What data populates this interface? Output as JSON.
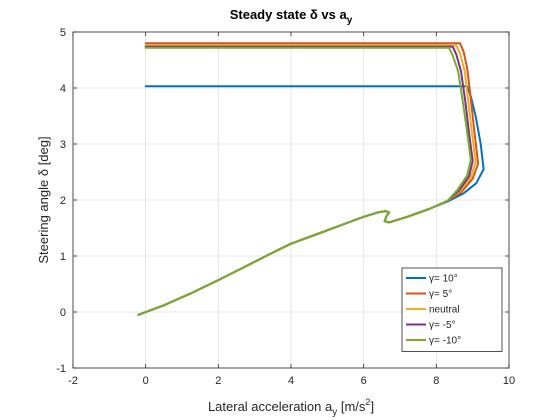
{
  "chart_data": {
    "type": "line",
    "title": "Steady state δ vs a",
    "title_subscript": "y",
    "xlabel": "Lateral acceleration a",
    "xlabel_subscript": "y",
    "xlabel_units": " [m/s",
    "xlabel_units_superscript": "2",
    "xlabel_units_close": "]",
    "ylabel": "Steering angle δ [deg]",
    "xlim": [
      -2,
      10
    ],
    "ylim": [
      -1,
      5
    ],
    "xticks": [
      "-2",
      "0",
      "2",
      "4",
      "6",
      "8",
      "10"
    ],
    "yticks": [
      "-1",
      "0",
      "1",
      "2",
      "3",
      "4",
      "5"
    ],
    "grid": true,
    "legend_position": "bottom-right",
    "series": [
      {
        "name": "γ= 10°",
        "color": "#0072BD",
        "points": [
          [
            -0.2,
            -0.05
          ],
          [
            0.5,
            0.12
          ],
          [
            1.2,
            0.32
          ],
          [
            2,
            0.57
          ],
          [
            2.8,
            0.83
          ],
          [
            3.5,
            1.06
          ],
          [
            4,
            1.22
          ],
          [
            4.8,
            1.41
          ],
          [
            5.5,
            1.58
          ],
          [
            6,
            1.7
          ],
          [
            6.4,
            1.78
          ],
          [
            6.6,
            1.8
          ],
          [
            6.7,
            1.78
          ],
          [
            6.62,
            1.7
          ],
          [
            6.58,
            1.62
          ],
          [
            6.7,
            1.6
          ],
          [
            7.2,
            1.7
          ],
          [
            7.8,
            1.84
          ],
          [
            8.3,
            1.97
          ],
          [
            8.75,
            2.12
          ],
          [
            9.1,
            2.3
          ],
          [
            9.3,
            2.55
          ],
          [
            9.22,
            3.0
          ],
          [
            9.08,
            3.5
          ],
          [
            8.95,
            3.85
          ],
          [
            8.85,
            4.03
          ],
          [
            7.5,
            4.03
          ],
          [
            5,
            4.03
          ],
          [
            2.5,
            4.03
          ],
          [
            0,
            4.03
          ]
        ]
      },
      {
        "name": "γ= 5°",
        "color": "#D95319",
        "points": [
          [
            -0.2,
            -0.05
          ],
          [
            0.5,
            0.12
          ],
          [
            1.2,
            0.32
          ],
          [
            2,
            0.57
          ],
          [
            2.8,
            0.83
          ],
          [
            3.5,
            1.06
          ],
          [
            4,
            1.22
          ],
          [
            4.8,
            1.41
          ],
          [
            5.5,
            1.58
          ],
          [
            6,
            1.7
          ],
          [
            6.4,
            1.78
          ],
          [
            6.6,
            1.8
          ],
          [
            6.7,
            1.78
          ],
          [
            6.62,
            1.7
          ],
          [
            6.58,
            1.62
          ],
          [
            6.7,
            1.6
          ],
          [
            7.2,
            1.7
          ],
          [
            7.8,
            1.84
          ],
          [
            8.3,
            1.98
          ],
          [
            8.7,
            2.15
          ],
          [
            9.0,
            2.38
          ],
          [
            9.15,
            2.65
          ],
          [
            9.05,
            3.2
          ],
          [
            8.95,
            3.8
          ],
          [
            8.85,
            4.35
          ],
          [
            8.75,
            4.65
          ],
          [
            8.65,
            4.8
          ],
          [
            6,
            4.8
          ],
          [
            3,
            4.8
          ],
          [
            0,
            4.8
          ]
        ]
      },
      {
        "name": "neutral",
        "color": "#EDB120",
        "points": [
          [
            -0.2,
            -0.05
          ],
          [
            0.5,
            0.12
          ],
          [
            1.2,
            0.32
          ],
          [
            2,
            0.57
          ],
          [
            2.8,
            0.83
          ],
          [
            3.5,
            1.06
          ],
          [
            4,
            1.22
          ],
          [
            4.8,
            1.41
          ],
          [
            5.5,
            1.58
          ],
          [
            6,
            1.7
          ],
          [
            6.4,
            1.78
          ],
          [
            6.6,
            1.8
          ],
          [
            6.7,
            1.78
          ],
          [
            6.62,
            1.7
          ],
          [
            6.58,
            1.62
          ],
          [
            6.7,
            1.6
          ],
          [
            7.2,
            1.7
          ],
          [
            7.8,
            1.84
          ],
          [
            8.3,
            1.98
          ],
          [
            8.65,
            2.16
          ],
          [
            8.95,
            2.4
          ],
          [
            9.08,
            2.68
          ],
          [
            8.98,
            3.2
          ],
          [
            8.88,
            3.75
          ],
          [
            8.78,
            4.3
          ],
          [
            8.65,
            4.62
          ],
          [
            8.55,
            4.76
          ],
          [
            6,
            4.76
          ],
          [
            3,
            4.76
          ],
          [
            0,
            4.76
          ]
        ]
      },
      {
        "name": "γ= -5°",
        "color": "#7E2F8E",
        "points": [
          [
            -0.2,
            -0.05
          ],
          [
            0.5,
            0.12
          ],
          [
            1.2,
            0.32
          ],
          [
            2,
            0.57
          ],
          [
            2.8,
            0.83
          ],
          [
            3.5,
            1.06
          ],
          [
            4,
            1.22
          ],
          [
            4.8,
            1.41
          ],
          [
            5.5,
            1.58
          ],
          [
            6,
            1.7
          ],
          [
            6.4,
            1.78
          ],
          [
            6.6,
            1.8
          ],
          [
            6.7,
            1.78
          ],
          [
            6.62,
            1.7
          ],
          [
            6.58,
            1.62
          ],
          [
            6.7,
            1.6
          ],
          [
            7.2,
            1.7
          ],
          [
            7.8,
            1.84
          ],
          [
            8.3,
            1.98
          ],
          [
            8.62,
            2.17
          ],
          [
            8.9,
            2.42
          ],
          [
            9.0,
            2.7
          ],
          [
            8.9,
            3.2
          ],
          [
            8.8,
            3.75
          ],
          [
            8.68,
            4.3
          ],
          [
            8.55,
            4.6
          ],
          [
            8.45,
            4.74
          ],
          [
            6,
            4.74
          ],
          [
            3,
            4.74
          ],
          [
            0,
            4.74
          ]
        ]
      },
      {
        "name": "γ= -10°",
        "color": "#77AC30",
        "points": [
          [
            -0.2,
            -0.05
          ],
          [
            0.5,
            0.12
          ],
          [
            1.2,
            0.32
          ],
          [
            2,
            0.57
          ],
          [
            2.8,
            0.83
          ],
          [
            3.5,
            1.06
          ],
          [
            4,
            1.22
          ],
          [
            4.8,
            1.41
          ],
          [
            5.5,
            1.58
          ],
          [
            6,
            1.7
          ],
          [
            6.4,
            1.78
          ],
          [
            6.6,
            1.8
          ],
          [
            6.7,
            1.78
          ],
          [
            6.62,
            1.7
          ],
          [
            6.58,
            1.62
          ],
          [
            6.7,
            1.6
          ],
          [
            7.2,
            1.7
          ],
          [
            7.8,
            1.84
          ],
          [
            8.3,
            1.98
          ],
          [
            8.58,
            2.18
          ],
          [
            8.85,
            2.44
          ],
          [
            8.95,
            2.72
          ],
          [
            8.85,
            3.2
          ],
          [
            8.73,
            3.75
          ],
          [
            8.6,
            4.3
          ],
          [
            8.45,
            4.58
          ],
          [
            8.35,
            4.72
          ],
          [
            6,
            4.72
          ],
          [
            3,
            4.72
          ],
          [
            0,
            4.72
          ]
        ]
      }
    ]
  }
}
